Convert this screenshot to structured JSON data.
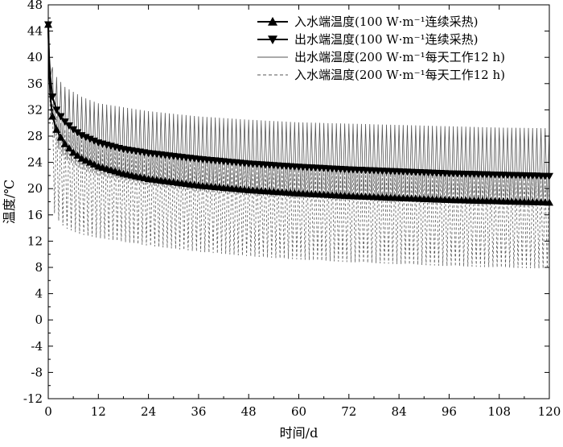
{
  "chart_data": {
    "type": "line",
    "xlabel": "时间/d",
    "ylabel": "温度/℃",
    "xlim": [
      0,
      120
    ],
    "ylim": [
      -12,
      48
    ],
    "xticks": [
      0,
      12,
      24,
      36,
      48,
      60,
      72,
      84,
      96,
      108,
      120
    ],
    "yticks": [
      -12,
      -8,
      -4,
      0,
      4,
      8,
      12,
      16,
      20,
      24,
      28,
      32,
      36,
      40,
      44,
      48
    ],
    "grid": false,
    "legend_position": "top-right",
    "series": [
      {
        "name": "入水端温度(100 W·m⁻¹连续采热)",
        "marker": "triangle-up",
        "line_style": "solid",
        "color": "#000000",
        "x": [
          0,
          0.2,
          0.5,
          1,
          2,
          3,
          4,
          6,
          8,
          12,
          18,
          24,
          36,
          48,
          60,
          72,
          84,
          96,
          108,
          120
        ],
        "y": [
          45,
          38,
          34,
          31,
          29,
          27.8,
          26.8,
          25.5,
          24.6,
          23.4,
          22.3,
          21.5,
          20.5,
          19.8,
          19.3,
          18.9,
          18.6,
          18.3,
          18.1,
          17.9
        ]
      },
      {
        "name": "出水端温度(100 W·m⁻¹连续采热)",
        "marker": "triangle-down",
        "line_style": "solid",
        "color": "#000000",
        "x": [
          0,
          0.2,
          0.5,
          1,
          2,
          3,
          4,
          6,
          8,
          12,
          18,
          24,
          36,
          48,
          60,
          72,
          84,
          96,
          108,
          120
        ],
        "y": [
          45,
          40,
          37,
          34,
          32,
          31,
          30.2,
          29,
          28.1,
          27,
          26,
          25.4,
          24.5,
          23.8,
          23.3,
          22.9,
          22.6,
          22.3,
          22.1,
          21.9
        ]
      },
      {
        "name": "出水端温度(200 W·m⁻¹每天工作12 h)",
        "line_style": "solid",
        "color": "#555555",
        "oscillating": true,
        "period_days": 1,
        "envelope_x": [
          0,
          1,
          2,
          4,
          8,
          12,
          24,
          36,
          48,
          60,
          72,
          84,
          96,
          108,
          120
        ],
        "envelope_high": [
          45,
          38.5,
          37,
          35.5,
          34,
          33,
          31.8,
          31,
          30.5,
          30.1,
          29.9,
          29.7,
          29.5,
          29.3,
          29.2
        ],
        "envelope_low": [
          45,
          29,
          26.5,
          24.5,
          23,
          22,
          20.5,
          19.6,
          19,
          18.6,
          18.3,
          18,
          17.8,
          17.6,
          17.5
        ]
      },
      {
        "name": "入水端温度(200 W·m⁻¹每天工作12 h)",
        "line_style": "dashed",
        "color": "#555555",
        "oscillating": true,
        "period_days": 1,
        "envelope_x": [
          0,
          1,
          2,
          4,
          8,
          12,
          24,
          36,
          48,
          60,
          72,
          84,
          96,
          108,
          120
        ],
        "envelope_high": [
          45,
          33,
          31,
          29,
          27.5,
          26.5,
          25,
          24,
          23.4,
          23,
          22.6,
          22.3,
          22,
          21.8,
          21.6
        ],
        "envelope_low": [
          45,
          17,
          15.5,
          14,
          13,
          12.5,
          11.3,
          10.4,
          9.7,
          9.2,
          8.8,
          8.5,
          8.2,
          8,
          7.8
        ]
      }
    ]
  }
}
